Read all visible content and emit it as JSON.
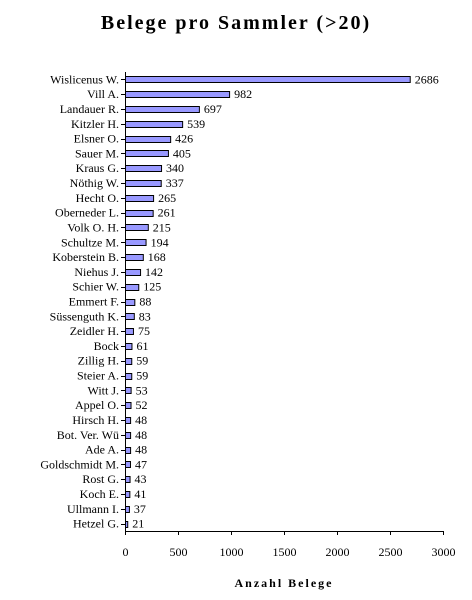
{
  "chart_data": {
    "type": "bar",
    "orientation": "horizontal",
    "title": "Belege pro Sammler (>20)",
    "xlabel": "Anzahl Belege",
    "ylabel": "",
    "xlim": [
      0,
      3000
    ],
    "ticks": [
      "0",
      "500",
      "1000",
      "1500",
      "2000",
      "2500",
      "3000"
    ],
    "grid": false,
    "bar_color": "#9999ff",
    "categories": [
      "Wislicenus W.",
      "Vill A.",
      "Landauer R.",
      "Kitzler H.",
      "Elsner O.",
      "Sauer M.",
      "Kraus G.",
      "Nöthig W.",
      "Hecht O.",
      "Oberneder L.",
      "Volk O. H.",
      "Schultze M.",
      "Koberstein B.",
      "Niehus J.",
      "Schier W.",
      "Emmert F.",
      "Süssenguth K.",
      "Zeidler H.",
      "Bock",
      "Zillig H.",
      "Steier A.",
      "Witt J.",
      "Appel O.",
      "Hirsch H.",
      "Bot. Ver. Wü",
      "Ade A.",
      "Goldschmidt M.",
      "Rost G.",
      "Koch E.",
      "Ullmann I.",
      "Hetzel G."
    ],
    "values": [
      2686,
      982,
      697,
      539,
      426,
      405,
      340,
      337,
      265,
      261,
      215,
      194,
      168,
      142,
      125,
      88,
      83,
      75,
      61,
      59,
      59,
      53,
      52,
      48,
      48,
      48,
      47,
      43,
      41,
      37,
      21
    ]
  }
}
